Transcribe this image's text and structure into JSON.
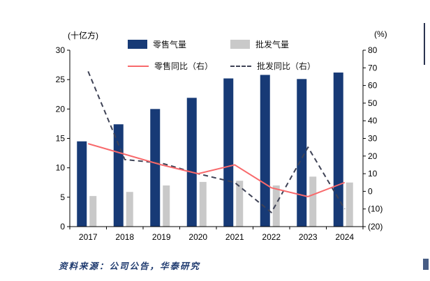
{
  "page": {
    "unit_left": "(十亿方)",
    "unit_right": "(%)",
    "source": "资料来源：公司公告，华泰研究"
  },
  "legend": {
    "items": [
      {
        "label": "零售气量",
        "type": "bar",
        "color": "#173a76"
      },
      {
        "label": "批发气量",
        "type": "bar",
        "color": "#c9c9c9"
      },
      {
        "label": "零售同比（右）",
        "type": "line",
        "color": "#f8696b"
      },
      {
        "label": "批发同比（右）",
        "type": "dashed-line",
        "color": "#3f4356"
      }
    ]
  },
  "chart_data": {
    "type": "bar+line combo",
    "title": "",
    "categories": [
      "2017",
      "2018",
      "2019",
      "2020",
      "2021",
      "2022",
      "2023",
      "2024"
    ],
    "series": [
      {
        "name": "零售气量",
        "type": "bar",
        "axis": "left",
        "color": "#173a76",
        "values": [
          14.5,
          17.4,
          20.0,
          21.9,
          25.2,
          25.8,
          25.1,
          26.2
        ]
      },
      {
        "name": "批发气量",
        "type": "bar",
        "axis": "left",
        "color": "#c9c9c9",
        "values": [
          5.2,
          5.9,
          7.0,
          7.6,
          7.8,
          7.0,
          8.5,
          7.5
        ]
      },
      {
        "name": "零售同比（右）",
        "type": "line",
        "dash": false,
        "axis": "right",
        "color": "#f8696b",
        "values": [
          27,
          21,
          15,
          10,
          15,
          2,
          -3,
          5
        ]
      },
      {
        "name": "批发同比（右）",
        "type": "line",
        "dash": true,
        "axis": "right",
        "color": "#3f4356",
        "values": [
          68,
          18,
          16,
          10,
          5,
          -12,
          25,
          -10
        ]
      }
    ],
    "left_axis": {
      "title": "(十亿方)",
      "min": 0,
      "max": 30,
      "tick_values": [
        0,
        5,
        10,
        15,
        20,
        25,
        30
      ],
      "tick_labels": [
        "0",
        "5",
        "10",
        "15",
        "20",
        "25",
        "30"
      ]
    },
    "right_axis": {
      "title": "(%)",
      "min": -20,
      "max": 80,
      "tick_values": [
        -20,
        -10,
        0,
        10,
        20,
        30,
        40,
        50,
        60,
        70,
        80
      ],
      "tick_labels": [
        "(20)",
        "(10)",
        "0",
        "10",
        "20",
        "30",
        "40",
        "50",
        "60",
        "70",
        "80"
      ]
    },
    "grid": false,
    "legend_position": "top"
  }
}
